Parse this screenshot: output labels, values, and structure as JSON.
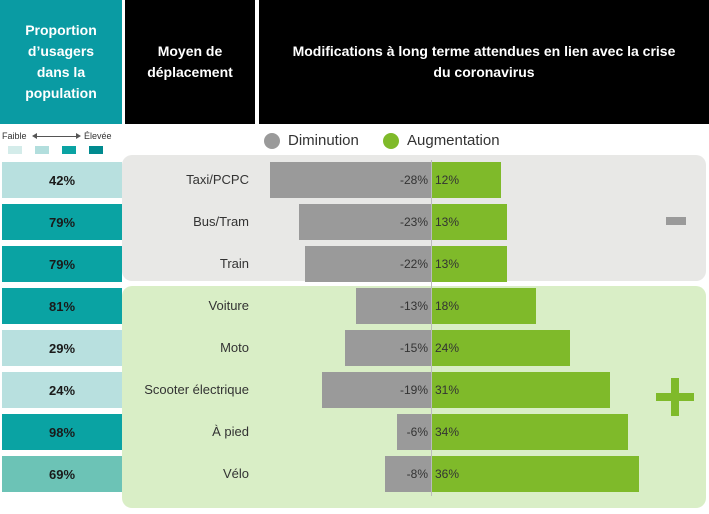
{
  "headers": {
    "proportion": [
      "Proportion",
      "d’usagers",
      "dans la",
      "population"
    ],
    "mode": [
      "Moyen de",
      "déplacement"
    ],
    "modifications": [
      "Modifications à long terme attendues en lien avec la crise",
      "du coronavirus"
    ]
  },
  "scale": {
    "low": "Faible",
    "high": "Élevée",
    "swatches": [
      "#d4ecea",
      "#b2dedd",
      "#0aa3a3",
      "#008a8f"
    ]
  },
  "legend": [
    {
      "label": "Diminution",
      "color": "#9a9a9a"
    },
    {
      "label": "Augmentation",
      "color": "#7fba2a"
    }
  ],
  "colors": {
    "decrease": "#9a9a9a",
    "increase": "#7fba2a",
    "group_minus": "#e8e8e6",
    "group_plus": "#d9eec6"
  },
  "chart_data": {
    "type": "bar",
    "orientation": "horizontal-diverging",
    "categories": [
      "Taxi/PCPC",
      "Bus/Tram",
      "Train",
      "Voiture",
      "Moto",
      "Scooter électrique",
      "À pied",
      "Vélo"
    ],
    "series": [
      {
        "name": "Diminution",
        "values": [
          -28,
          -23,
          -22,
          -13,
          -15,
          -19,
          -6,
          -8
        ]
      },
      {
        "name": "Augmentation",
        "values": [
          12,
          13,
          13,
          18,
          24,
          31,
          34,
          36
        ]
      }
    ],
    "value_labels_decrease": [
      "-28%",
      "-23%",
      "-22%",
      "-13%",
      "-15%",
      "-19%",
      "-6%",
      "-8%"
    ],
    "value_labels_increase": [
      "12%",
      "13%",
      "13%",
      "18%",
      "24%",
      "31%",
      "34%",
      "36%"
    ],
    "usage_share": [
      "42%",
      "79%",
      "79%",
      "81%",
      "29%",
      "24%",
      "98%",
      "69%"
    ],
    "usage_share_colors": [
      "#b8e0df",
      "#0aa3a3",
      "#0aa3a3",
      "#0aa3a3",
      "#b8e0df",
      "#b8e0df",
      "#0aa3a3",
      "#6cc3b6"
    ],
    "groups": [
      {
        "sign": "minus",
        "rows": [
          0,
          1,
          2
        ]
      },
      {
        "sign": "plus",
        "rows": [
          3,
          4,
          5,
          6,
          7
        ]
      }
    ]
  }
}
